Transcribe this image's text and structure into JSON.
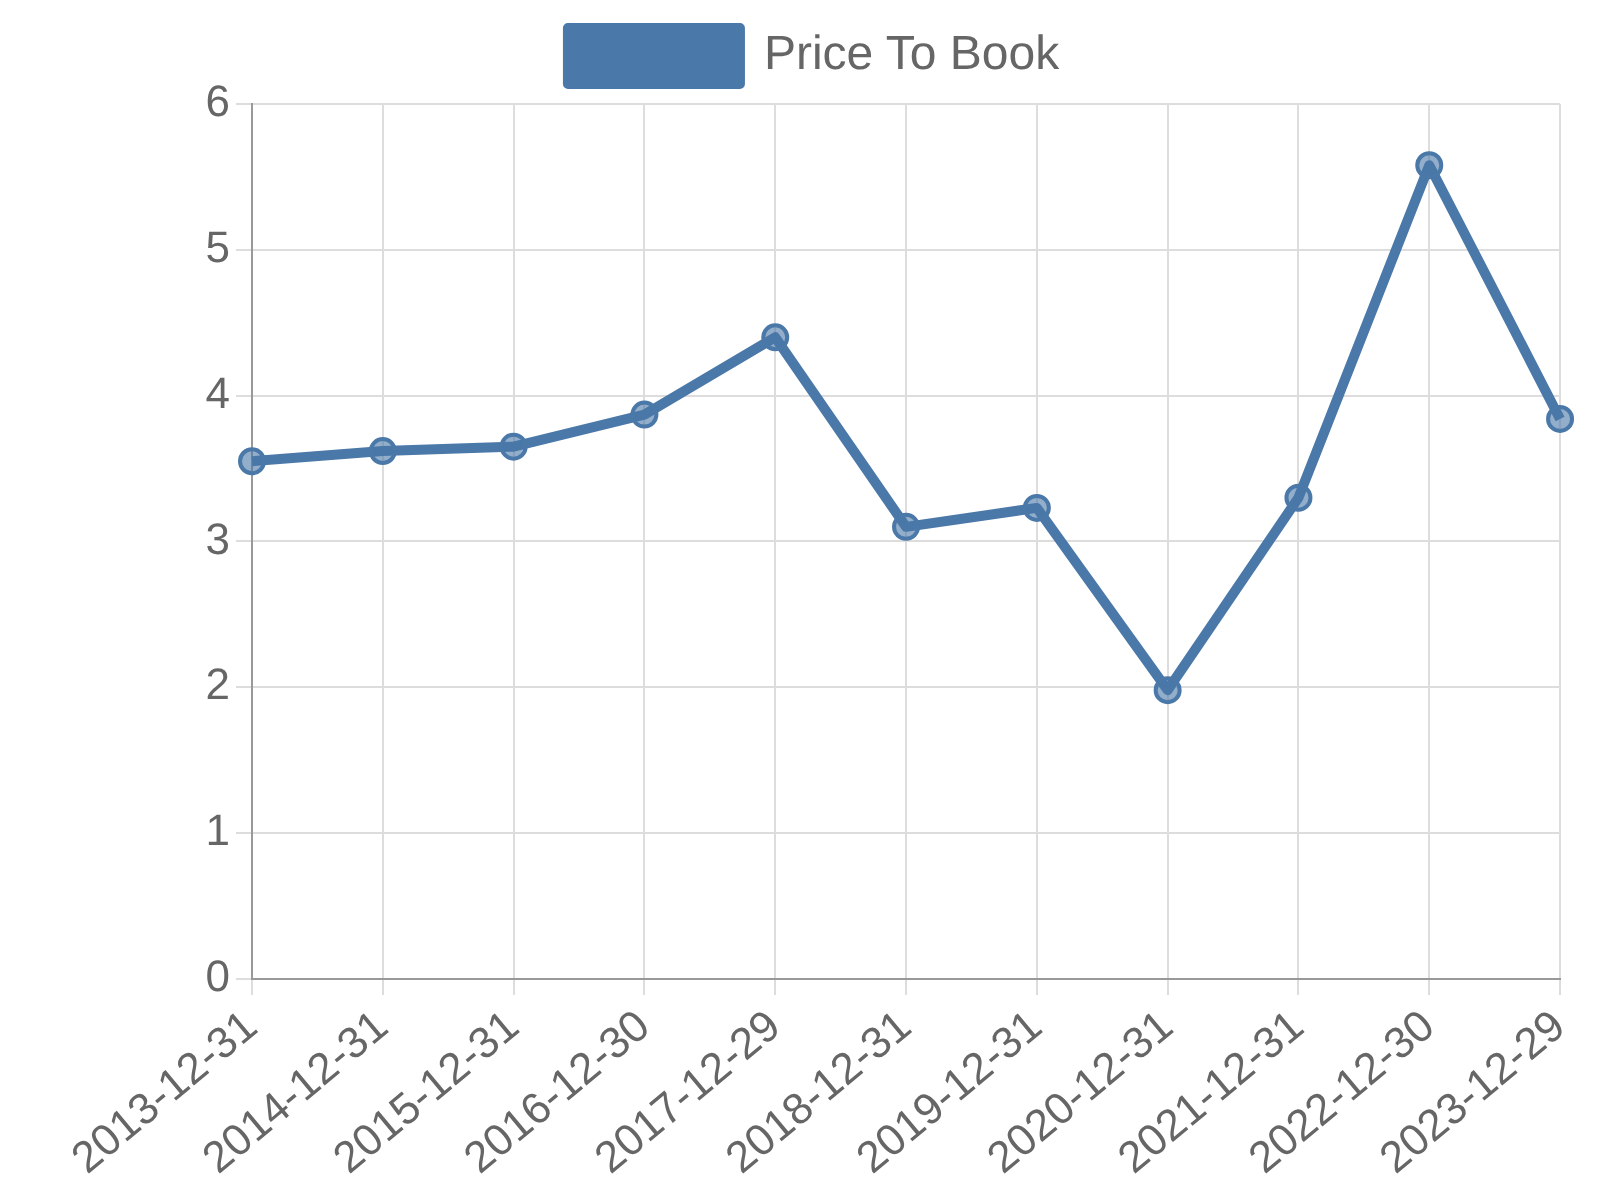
{
  "chart_data": {
    "type": "line",
    "categories": [
      "2013-12-31",
      "2014-12-31",
      "2015-12-31",
      "2016-12-30",
      "2017-12-29",
      "2018-12-31",
      "2019-12-31",
      "2020-12-31",
      "2021-12-31",
      "2022-12-30",
      "2023-12-29"
    ],
    "series": [
      {
        "name": "Price To Book",
        "color": "#4a78a8",
        "values": [
          3.55,
          3.62,
          3.65,
          3.87,
          4.4,
          3.1,
          3.23,
          1.98,
          3.3,
          5.58,
          3.84
        ]
      }
    ],
    "ylim": [
      0,
      6
    ],
    "yticks": [
      0,
      1,
      2,
      3,
      4,
      5,
      6
    ],
    "grid": true,
    "legend": "top",
    "marker": "circle",
    "line_style": "solid"
  }
}
